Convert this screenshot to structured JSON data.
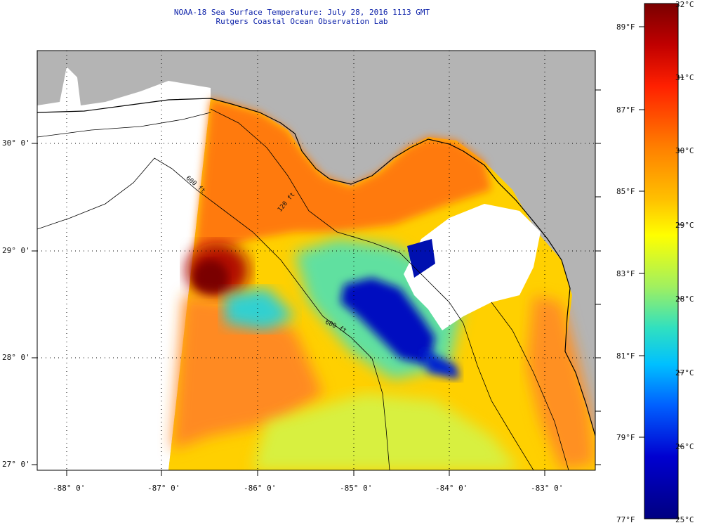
{
  "title": {
    "line1": "NOAA-18 Sea Surface Temperature:  July 28, 2016 1113 GMT",
    "line2": "Rutgers Coastal Ocean Observation Lab"
  },
  "map": {
    "lat_labels": [
      "30° 0'",
      "29° 0'",
      "28° 0'",
      "27° 0'"
    ],
    "lon_labels": [
      "-88° 0'",
      "-87° 0'",
      "-86° 0'",
      "-85° 0'",
      "-84° 0'",
      "-83° 0'"
    ],
    "contour_labels": [
      "120 ft",
      "600 ft",
      "600 ft"
    ],
    "colors": {
      "land": "#b4b4b4",
      "nodata": "#ffffff",
      "coast": "#000000"
    }
  },
  "colorbar": {
    "fahrenheit": [
      "89°F",
      "87°F",
      "85°F",
      "83°F",
      "81°F",
      "79°F",
      "77°F"
    ],
    "celsius": [
      "32°C",
      "31°C",
      "30°C",
      "29°C",
      "28°C",
      "27°C",
      "26°C",
      "25°C"
    ],
    "stops": [
      "#7a0000",
      "#c00000",
      "#ff2000",
      "#ff8000",
      "#ffc000",
      "#ffff00",
      "#a0f060",
      "#30e0c0",
      "#00c0ff",
      "#0060ff",
      "#0000d0",
      "#000080"
    ]
  }
}
